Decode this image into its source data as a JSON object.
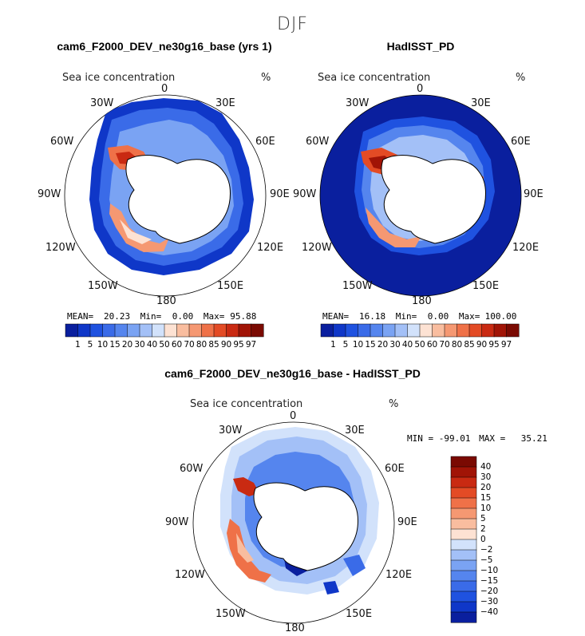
{
  "season": "DJF",
  "panels": [
    {
      "title": "cam6_F2000_DEV_ne30g16_base (yrs 1)",
      "variable": "Sea ice concentration",
      "units": "%",
      "stats": {
        "mean_label": "MEAN=",
        "mean": "20.23",
        "min_label": "Min=",
        "min": "0.00",
        "max_label": "Max=",
        "max": "95.88"
      }
    },
    {
      "title": "HadISST_PD",
      "variable": "Sea ice concentration",
      "units": "%",
      "stats": {
        "mean_label": "MEAN=",
        "mean": "16.18",
        "min_label": "Min=",
        "min": "0.00",
        "max_label": "Max=",
        "max": "100.00"
      }
    },
    {
      "title": "cam6_F2000_DEV_ne30g16_base - HadISST_PD",
      "variable": "Sea ice concentration",
      "units": "%",
      "stats": {
        "min_label": "MIN =",
        "min": "-99.01",
        "max_label": "MAX =",
        "max": "35.21"
      }
    }
  ],
  "longitude_labels": [
    "0",
    "30E",
    "60E",
    "90E",
    "120E",
    "150E",
    "180",
    "150W",
    "120W",
    "90W",
    "60W",
    "30W"
  ],
  "abs_colorbar": {
    "labels": [
      "1",
      "5",
      "10",
      "15",
      "20",
      "30",
      "40",
      "50",
      "60",
      "70",
      "80",
      "85",
      "90",
      "95",
      "97"
    ],
    "colors": [
      "#0a1f9e",
      "#0f37c8",
      "#1f52e0",
      "#3a6be8",
      "#5585ee",
      "#7aa3f3",
      "#a3c0f7",
      "#d2e2fb",
      "#fde2d3",
      "#f9bd9f",
      "#f59872",
      "#ef7148",
      "#e34b25",
      "#c92a12",
      "#a11406",
      "#7a0a02"
    ]
  },
  "diff_colorbar": {
    "labels": [
      "40",
      "30",
      "20",
      "15",
      "10",
      "5",
      "2",
      "0",
      "−2",
      "−5",
      "−10",
      "−15",
      "−20",
      "−30",
      "−40"
    ],
    "colors": [
      "#7a0a02",
      "#a11406",
      "#c92a12",
      "#e34b25",
      "#ef7148",
      "#f59872",
      "#f9bd9f",
      "#fde2d3",
      "#d2e2fb",
      "#a3c0f7",
      "#7aa3f3",
      "#5585ee",
      "#3a6be8",
      "#1f52e0",
      "#0f37c8",
      "#0a1f9e"
    ]
  },
  "colors": {
    "ocean_ice_free_obs": "#0a1f9e",
    "land": "#ffffff",
    "coast": "#000000"
  }
}
